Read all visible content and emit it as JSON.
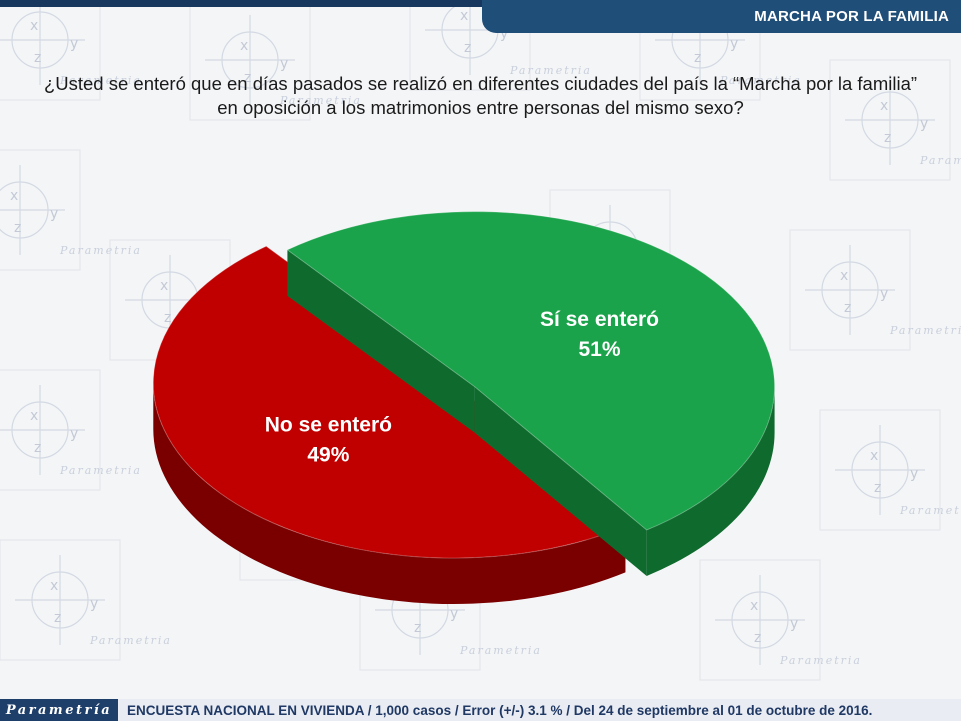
{
  "header": {
    "section_title": "MARCHA POR LA FAMILIA"
  },
  "question": "¿Usted se enteró que en días pasados se realizó en diferentes ciudades del país la “Marcha por la familia” en oposición a los matrimonios entre personas del mismo sexo?",
  "chart_data": {
    "type": "pie",
    "title": "",
    "slices": [
      {
        "label": "Sí se enteró",
        "value": 51,
        "value_label": "51%",
        "color": "#1aa34a",
        "side_color": "#0f6a2e"
      },
      {
        "label": "No se enteró",
        "value": 49,
        "value_label": "49%",
        "color": "#c00000",
        "side_color": "#7a0000"
      }
    ],
    "exploded": true,
    "three_d": true
  },
  "footer": {
    "logo_text": "Parametría",
    "note": "ENCUESTA NACIONAL EN VIVIENDA / 1,000 casos / Error (+/-) 3.1 % / Del 24 de septiembre al 01 de octubre de 2016."
  },
  "watermark": {
    "brand": "Parametria",
    "letters": [
      "x",
      "y",
      "z"
    ]
  }
}
